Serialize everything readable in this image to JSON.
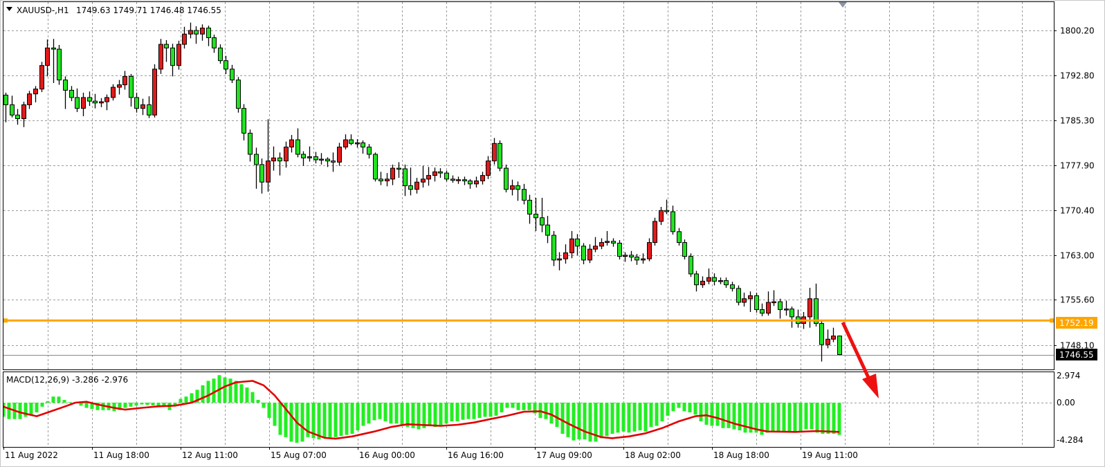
{
  "header": {
    "collapse_icon": "triangle-down-icon",
    "symbol": "XAUUSD-,H1",
    "ohlc_text": "1749.63 1749.71 1746.48 1746.55"
  },
  "colors": {
    "bull_candle": "#e01b1b",
    "bear_candle": "#22e222",
    "outline": "#000000",
    "level_line": "#ffa500",
    "macd_histogram": "#22ee22",
    "macd_signal": "#e00000",
    "arrow": "#ee1111",
    "grid": "#9a9a9a"
  },
  "chart_data": [
    {
      "type": "candlestick",
      "title": "XAUUSD-,H1",
      "timeframe": "H1",
      "ylim": [
        1744.4,
        1805.1
      ],
      "grid": true,
      "y_tick_labels": [
        "1800.20",
        "1792.80",
        "1785.30",
        "1777.90",
        "1770.40",
        "1763.00",
        "1755.60",
        "1748.10"
      ],
      "x_tick_labels": [
        "11 Aug 2022",
        "11 Aug 18:00",
        "12 Aug 11:00",
        "15 Aug 07:00",
        "16 Aug 00:00",
        "16 Aug 16:00",
        "17 Aug 09:00",
        "18 Aug 02:00",
        "18 Aug 18:00",
        "19 Aug 11:00"
      ],
      "last_price": 1746.55,
      "last_price_label": "1746.55",
      "horizontal_level": 1752.19,
      "horizontal_level_label": "1752.19",
      "annotation": "red arrow pointing down-right from the horizontal level",
      "candles_ohlc": [
        [
          1789.5,
          1789.9,
          1785.0,
          1787.9
        ],
        [
          1787.9,
          1789.4,
          1785.8,
          1786.2
        ],
        [
          1786.2,
          1787.2,
          1784.6,
          1785.6
        ],
        [
          1785.6,
          1788.4,
          1784.2,
          1787.9
        ],
        [
          1787.9,
          1790.2,
          1787.2,
          1789.7
        ],
        [
          1789.7,
          1791.0,
          1788.3,
          1790.5
        ],
        [
          1790.5,
          1795.0,
          1790.0,
          1794.4
        ],
        [
          1794.4,
          1798.7,
          1792.6,
          1797.3
        ],
        [
          1797.3,
          1798.8,
          1791.5,
          1797.1
        ],
        [
          1797.1,
          1797.8,
          1791.2,
          1792.0
        ],
        [
          1792.0,
          1792.6,
          1787.2,
          1790.3
        ],
        [
          1790.3,
          1791.0,
          1788.5,
          1789.1
        ],
        [
          1789.1,
          1790.6,
          1786.7,
          1787.3
        ],
        [
          1787.3,
          1789.9,
          1786.0,
          1789.1
        ],
        [
          1789.1,
          1790.1,
          1787.7,
          1788.5
        ],
        [
          1788.5,
          1789.7,
          1787.3,
          1788.2
        ],
        [
          1788.2,
          1789.0,
          1787.5,
          1788.4
        ],
        [
          1788.4,
          1789.6,
          1787.0,
          1789.1
        ],
        [
          1789.1,
          1791.3,
          1788.6,
          1790.8
        ],
        [
          1790.8,
          1792.0,
          1789.6,
          1791.2
        ],
        [
          1791.2,
          1793.5,
          1790.4,
          1792.6
        ],
        [
          1792.6,
          1793.0,
          1787.6,
          1789.1
        ],
        [
          1789.1,
          1789.9,
          1786.6,
          1787.3
        ],
        [
          1787.3,
          1788.9,
          1786.2,
          1787.9
        ],
        [
          1787.9,
          1789.3,
          1785.7,
          1786.2
        ],
        [
          1786.2,
          1794.6,
          1785.8,
          1793.8
        ],
        [
          1793.8,
          1798.8,
          1793.0,
          1797.9
        ],
        [
          1797.9,
          1798.6,
          1795.0,
          1797.3
        ],
        [
          1797.3,
          1798.0,
          1792.6,
          1794.4
        ],
        [
          1794.4,
          1798.5,
          1793.7,
          1797.9
        ],
        [
          1797.9,
          1800.8,
          1797.2,
          1799.6
        ],
        [
          1799.6,
          1801.5,
          1798.9,
          1800.2
        ],
        [
          1800.2,
          1800.9,
          1798.0,
          1799.6
        ],
        [
          1799.6,
          1801.2,
          1798.5,
          1800.6
        ],
        [
          1800.6,
          1801.0,
          1797.6,
          1799.0
        ],
        [
          1799.0,
          1799.5,
          1796.5,
          1797.3
        ],
        [
          1797.3,
          1797.9,
          1794.7,
          1795.2
        ],
        [
          1795.2,
          1796.0,
          1793.0,
          1793.8
        ],
        [
          1793.8,
          1794.5,
          1791.5,
          1792.0
        ],
        [
          1792.0,
          1792.5,
          1786.6,
          1787.3
        ],
        [
          1787.3,
          1788.0,
          1782.0,
          1783.2
        ],
        [
          1783.2,
          1783.8,
          1778.5,
          1779.7
        ],
        [
          1779.7,
          1780.8,
          1774.0,
          1778.0
        ],
        [
          1778.0,
          1779.0,
          1773.2,
          1775.1
        ],
        [
          1775.1,
          1785.5,
          1773.5,
          1778.6
        ],
        [
          1778.6,
          1781.0,
          1777.0,
          1779.1
        ],
        [
          1779.1,
          1780.0,
          1776.2,
          1778.6
        ],
        [
          1778.6,
          1781.8,
          1777.5,
          1780.9
        ],
        [
          1780.9,
          1782.9,
          1780.0,
          1782.1
        ],
        [
          1782.1,
          1784.0,
          1779.2,
          1779.7
        ],
        [
          1779.7,
          1780.2,
          1777.8,
          1779.1
        ],
        [
          1779.1,
          1781.0,
          1778.5,
          1779.3
        ],
        [
          1779.3,
          1780.1,
          1778.2,
          1778.8
        ],
        [
          1778.8,
          1779.9,
          1778.0,
          1778.9
        ],
        [
          1778.9,
          1779.2,
          1777.6,
          1778.6
        ],
        [
          1778.6,
          1780.0,
          1776.8,
          1778.4
        ],
        [
          1778.4,
          1781.6,
          1777.8,
          1780.9
        ],
        [
          1780.9,
          1783.0,
          1780.5,
          1782.1
        ],
        [
          1782.1,
          1783.0,
          1781.2,
          1781.5
        ],
        [
          1781.5,
          1782.2,
          1780.8,
          1781.6
        ],
        [
          1781.6,
          1782.0,
          1779.8,
          1780.9
        ],
        [
          1780.9,
          1781.4,
          1779.0,
          1779.7
        ],
        [
          1779.7,
          1780.0,
          1775.2,
          1775.6
        ],
        [
          1775.6,
          1776.8,
          1774.6,
          1775.3
        ],
        [
          1775.3,
          1776.6,
          1774.4,
          1775.6
        ],
        [
          1775.6,
          1778.0,
          1774.6,
          1777.4
        ],
        [
          1777.4,
          1778.4,
          1775.8,
          1777.3
        ],
        [
          1777.3,
          1778.0,
          1772.8,
          1774.5
        ],
        [
          1774.5,
          1777.5,
          1772.9,
          1773.9
        ],
        [
          1773.9,
          1775.8,
          1773.2,
          1775.1
        ],
        [
          1775.1,
          1777.8,
          1774.2,
          1775.6
        ],
        [
          1775.6,
          1777.6,
          1774.5,
          1776.2
        ],
        [
          1776.2,
          1777.5,
          1775.2,
          1776.8
        ],
        [
          1776.8,
          1777.4,
          1775.8,
          1776.6
        ],
        [
          1776.6,
          1777.0,
          1775.2,
          1775.6
        ],
        [
          1775.6,
          1776.2,
          1775.0,
          1775.4
        ],
        [
          1775.4,
          1776.0,
          1774.8,
          1775.5
        ],
        [
          1775.5,
          1776.0,
          1774.6,
          1775.3
        ],
        [
          1775.3,
          1775.6,
          1774.0,
          1774.8
        ],
        [
          1774.8,
          1776.0,
          1774.2,
          1775.3
        ],
        [
          1775.3,
          1776.8,
          1774.7,
          1776.2
        ],
        [
          1776.2,
          1779.4,
          1775.6,
          1778.6
        ],
        [
          1778.6,
          1782.4,
          1778.0,
          1781.5
        ],
        [
          1781.5,
          1782.0,
          1776.9,
          1777.4
        ],
        [
          1777.4,
          1778.0,
          1773.4,
          1773.9
        ],
        [
          1773.9,
          1775.5,
          1772.9,
          1774.5
        ],
        [
          1774.5,
          1775.2,
          1772.0,
          1773.9
        ],
        [
          1773.9,
          1774.8,
          1771.4,
          1772.1
        ],
        [
          1772.1,
          1773.0,
          1768.2,
          1769.8
        ],
        [
          1769.8,
          1772.5,
          1767.0,
          1769.2
        ],
        [
          1769.2,
          1772.5,
          1766.8,
          1768.0
        ],
        [
          1768.0,
          1769.5,
          1765.0,
          1766.3
        ],
        [
          1766.3,
          1767.0,
          1761.2,
          1762.2
        ],
        [
          1762.2,
          1763.5,
          1760.5,
          1762.4
        ],
        [
          1762.4,
          1764.8,
          1761.6,
          1763.4
        ],
        [
          1763.4,
          1767.0,
          1762.5,
          1765.7
        ],
        [
          1765.7,
          1766.5,
          1763.0,
          1764.5
        ],
        [
          1764.5,
          1765.0,
          1761.5,
          1762.2
        ],
        [
          1762.2,
          1764.8,
          1761.7,
          1764.0
        ],
        [
          1764.0,
          1766.0,
          1763.5,
          1764.5
        ],
        [
          1764.5,
          1765.8,
          1764.0,
          1765.1
        ],
        [
          1765.1,
          1767.0,
          1764.6,
          1765.3
        ],
        [
          1765.3,
          1765.8,
          1764.4,
          1765.0
        ],
        [
          1765.0,
          1765.5,
          1762.3,
          1762.8
        ],
        [
          1762.8,
          1763.5,
          1761.9,
          1763.0
        ],
        [
          1763.0,
          1763.7,
          1762.0,
          1762.7
        ],
        [
          1762.7,
          1763.2,
          1761.4,
          1762.2
        ],
        [
          1762.2,
          1763.3,
          1761.6,
          1762.4
        ],
        [
          1762.4,
          1765.8,
          1762.0,
          1765.1
        ],
        [
          1765.1,
          1769.2,
          1764.6,
          1768.6
        ],
        [
          1768.6,
          1771.0,
          1768.0,
          1770.4
        ],
        [
          1770.4,
          1772.2,
          1769.8,
          1770.2
        ],
        [
          1770.2,
          1771.2,
          1766.4,
          1766.9
        ],
        [
          1766.9,
          1767.5,
          1764.6,
          1765.1
        ],
        [
          1765.1,
          1765.6,
          1762.3,
          1762.8
        ],
        [
          1762.8,
          1763.3,
          1759.4,
          1759.9
        ],
        [
          1759.9,
          1760.4,
          1757.0,
          1758.1
        ],
        [
          1758.1,
          1759.5,
          1757.6,
          1758.7
        ],
        [
          1758.7,
          1760.8,
          1758.2,
          1759.3
        ],
        [
          1759.3,
          1760.0,
          1758.0,
          1758.7
        ],
        [
          1758.7,
          1759.3,
          1758.2,
          1758.8
        ],
        [
          1758.8,
          1759.3,
          1757.6,
          1758.1
        ],
        [
          1758.1,
          1758.6,
          1757.0,
          1757.5
        ],
        [
          1757.5,
          1758.0,
          1754.7,
          1755.2
        ],
        [
          1755.2,
          1756.8,
          1754.5,
          1755.8
        ],
        [
          1755.8,
          1757.0,
          1753.6,
          1756.3
        ],
        [
          1756.3,
          1756.8,
          1753.5,
          1754.0
        ],
        [
          1754.0,
          1755.0,
          1752.9,
          1753.4
        ],
        [
          1753.4,
          1757.0,
          1753.0,
          1755.2
        ],
        [
          1755.2,
          1757.2,
          1754.6,
          1755.3
        ],
        [
          1755.3,
          1755.8,
          1752.5,
          1754.0
        ],
        [
          1754.0,
          1755.5,
          1753.0,
          1754.1
        ],
        [
          1754.1,
          1754.5,
          1751.0,
          1752.8
        ],
        [
          1752.8,
          1754.0,
          1751.0,
          1751.7
        ],
        [
          1751.7,
          1753.6,
          1750.8,
          1752.8
        ],
        [
          1752.8,
          1757.6,
          1751.0,
          1755.8
        ],
        [
          1755.8,
          1758.3,
          1751.2,
          1751.7
        ],
        [
          1751.7,
          1752.3,
          1745.4,
          1748.2
        ],
        [
          1748.2,
          1750.7,
          1747.6,
          1749.1
        ],
        [
          1749.1,
          1751.0,
          1748.6,
          1749.63
        ],
        [
          1749.63,
          1749.71,
          1746.48,
          1746.55
        ]
      ]
    },
    {
      "type": "bar+line",
      "title": "MACD(12,26,9) -3.286 -2.976",
      "ylim": [
        -4.284,
        2.974
      ],
      "y_tick_labels": [
        "2.974",
        "0.00",
        "-4.284"
      ],
      "macd_histogram": [
        -0.87,
        -1.22,
        -1.44,
        -1.67,
        -1.67,
        -1.67,
        -1.44,
        -1.22,
        -0.99,
        -0.41,
        0.16,
        0.62,
        0.62,
        0.28,
        0.05,
        0,
        -0.3,
        -0.53,
        -0.64,
        -0.76,
        -0.76,
        -0.76,
        -0.87,
        -0.76,
        -0.53,
        -0.41,
        -0.3,
        -0.18,
        -0.23,
        -0.28,
        -0.32,
        -0.41,
        -0.76,
        -0.3,
        0.39,
        0.62,
        0.96,
        1.31,
        1.77,
        2.22,
        2.45,
        2.8,
        2.57,
        2.45,
        2.22,
        1.88,
        1.54,
        1.08,
        0.28,
        -0.53,
        -1.56,
        -2.36,
        -3.28,
        -3.51,
        -3.97,
        -4.08,
        -3.97,
        -3.51,
        -3.62,
        -3.74,
        -3.62,
        -3.51,
        -3.51,
        -3.39,
        -3.28,
        -3.17,
        -2.82,
        -2.36,
        -2.13,
        -1.79,
        -1.67,
        -1.9,
        -2.13,
        -2.13,
        -2.25,
        -2.48,
        -2.59,
        -2.71,
        -2.59,
        -2.36,
        -2.48,
        -2.25,
        -2.13,
        -1.9,
        -1.9,
        -1.74,
        -1.67,
        -1.67,
        -1.56,
        -1.44,
        -1.44,
        -1.33,
        -0.99,
        -0.53,
        -0.53,
        -0.76,
        -0.76,
        -0.76,
        -1.1,
        -1.56,
        -1.67,
        -2.13,
        -2.48,
        -3.17,
        -3.51,
        -3.85,
        -3.74,
        -3.74,
        -3.97,
        -3.97,
        -3.62,
        -3.39,
        -3.17,
        -3.05,
        -2.94,
        -3.05,
        -2.94,
        -2.82,
        -2.94,
        -2.48,
        -2.36,
        -1.9,
        -1.33,
        -0.87,
        -0.53,
        -0.87,
        -0.99,
        -1.22,
        -1.9,
        -2.25,
        -2.36,
        -2.36,
        -2.59,
        -2.59,
        -2.71,
        -2.82,
        -3.05,
        -3.05,
        -3.05,
        -3.28,
        -3.05,
        -2.94,
        -2.94,
        -2.94,
        -2.94,
        -2.94,
        -2.94,
        -2.71,
        -2.71,
        -3.05,
        -3.17,
        -3.17,
        -3.17,
        -3.286
      ],
      "signal_by_bar": [
        [
          0,
          0.5
        ],
        [
          2,
          -0.41
        ],
        [
          5,
          -0.99
        ],
        [
          8,
          -1.38
        ],
        [
          10,
          -0.99
        ],
        [
          13,
          -0.41
        ],
        [
          15,
          0
        ],
        [
          17,
          0.09
        ],
        [
          19,
          -0.18
        ],
        [
          22,
          -0.53
        ],
        [
          24,
          -0.71
        ],
        [
          27,
          -0.53
        ],
        [
          30,
          -0.37
        ],
        [
          33,
          -0.3
        ],
        [
          36,
          0
        ],
        [
          39,
          0.73
        ],
        [
          42,
          1.65
        ],
        [
          44,
          2.06
        ],
        [
          47,
          2.22
        ],
        [
          49,
          1.77
        ],
        [
          51,
          0.73
        ],
        [
          53,
          -0.64
        ],
        [
          55,
          -2.02
        ],
        [
          57,
          -2.94
        ],
        [
          60,
          -3.58
        ],
        [
          62,
          -3.67
        ],
        [
          65,
          -3.44
        ],
        [
          69,
          -2.94
        ],
        [
          72,
          -2.48
        ],
        [
          75,
          -2.2
        ],
        [
          81,
          -2.36
        ],
        [
          84,
          -2.25
        ],
        [
          87,
          -2.02
        ],
        [
          90,
          -1.67
        ],
        [
          93,
          -1.33
        ],
        [
          96,
          -0.92
        ],
        [
          99,
          -0.87
        ],
        [
          101,
          -1.22
        ],
        [
          104,
          -2.13
        ],
        [
          107,
          -2.94
        ],
        [
          110,
          -3.51
        ],
        [
          112,
          -3.62
        ],
        [
          115,
          -3.44
        ],
        [
          118,
          -3.12
        ],
        [
          121,
          -2.59
        ],
        [
          124,
          -1.9
        ],
        [
          127,
          -1.38
        ],
        [
          129,
          -1.28
        ],
        [
          131,
          -1.56
        ],
        [
          134,
          -2.13
        ],
        [
          138,
          -2.71
        ],
        [
          140,
          -2.94
        ],
        [
          145,
          -2.98
        ],
        [
          149,
          -2.89
        ],
        [
          153,
          -2.976
        ]
      ]
    }
  ]
}
